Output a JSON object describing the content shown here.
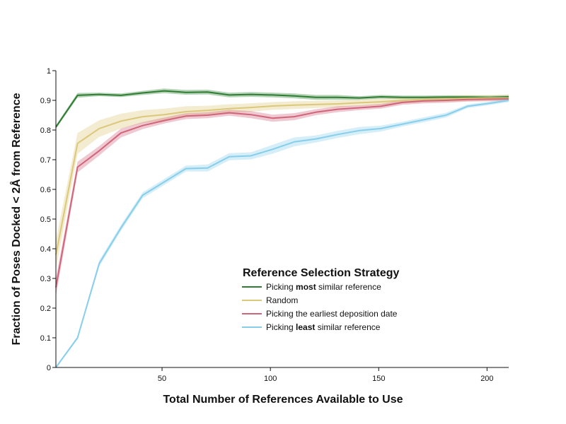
{
  "chart_data": {
    "type": "line",
    "title": "",
    "xlabel": "Total Number of References Available to Use",
    "ylabel": "Fraction of Poses Docked < 2Å from Reference",
    "xlim": [
      1,
      210
    ],
    "ylim": [
      0,
      1
    ],
    "x_ticks": [
      50,
      100,
      150,
      200
    ],
    "y_ticks": [
      0,
      0.1,
      0.2,
      0.3,
      0.4,
      0.5,
      0.6,
      0.7,
      0.8,
      0.9,
      1
    ],
    "y_tick_labels": [
      "0",
      "0.1",
      "0.2",
      "0.3",
      "0.4",
      "0.5",
      "0.6",
      "0.7",
      "0.8",
      "0.9",
      "1"
    ],
    "grid": false,
    "x": [
      1,
      11,
      21,
      31,
      41,
      51,
      61,
      71,
      81,
      91,
      101,
      111,
      121,
      131,
      141,
      151,
      161,
      171,
      181,
      191,
      201,
      210
    ],
    "legend": {
      "title": "Reference Selection Strategy",
      "placement": "lower-center",
      "items": [
        {
          "pre": "Picking ",
          "bold": "most",
          "post": " similar reference"
        },
        {
          "pre": "Random",
          "bold": "",
          "post": ""
        },
        {
          "pre": "Picking the earliest deposition date",
          "bold": "",
          "post": ""
        },
        {
          "pre": "Picking ",
          "bold": "least",
          "post": " similar reference"
        }
      ]
    },
    "series": [
      {
        "color": "#2e7d32",
        "band_color": "#2e7d32",
        "values": [
          0.81,
          0.917,
          0.92,
          0.917,
          0.925,
          0.932,
          0.927,
          0.928,
          0.918,
          0.92,
          0.918,
          0.915,
          0.91,
          0.91,
          0.908,
          0.912,
          0.91,
          0.91,
          0.911,
          0.911,
          0.91,
          0.912
        ],
        "band": [
          0.006,
          0.008,
          0.006,
          0.006,
          0.007,
          0.008,
          0.008,
          0.008,
          0.008,
          0.008,
          0.008,
          0.008,
          0.008,
          0.008,
          0.006,
          0.006,
          0.006,
          0.006,
          0.006,
          0.006,
          0.006,
          0.006
        ]
      },
      {
        "color": "#dcc87a",
        "band_color": "#dcc87a",
        "values": [
          0.38,
          0.755,
          0.805,
          0.83,
          0.845,
          0.852,
          0.862,
          0.866,
          0.872,
          0.876,
          0.881,
          0.884,
          0.886,
          0.888,
          0.892,
          0.895,
          0.9,
          0.903,
          0.905,
          0.907,
          0.908,
          0.908
        ],
        "band": [
          0.05,
          0.035,
          0.028,
          0.025,
          0.022,
          0.02,
          0.018,
          0.016,
          0.015,
          0.014,
          0.013,
          0.013,
          0.012,
          0.012,
          0.011,
          0.011,
          0.01,
          0.01,
          0.01,
          0.01,
          0.01,
          0.01
        ]
      },
      {
        "color": "#d0647a",
        "band_color": "#d0647a",
        "values": [
          0.27,
          0.675,
          0.73,
          0.79,
          0.815,
          0.832,
          0.847,
          0.85,
          0.858,
          0.852,
          0.84,
          0.845,
          0.86,
          0.87,
          0.875,
          0.88,
          0.893,
          0.898,
          0.9,
          0.903,
          0.904,
          0.905
        ],
        "band": [
          0.03,
          0.018,
          0.016,
          0.015,
          0.012,
          0.01,
          0.01,
          0.01,
          0.01,
          0.012,
          0.012,
          0.012,
          0.01,
          0.01,
          0.008,
          0.008,
          0.008,
          0.008,
          0.008,
          0.007,
          0.007,
          0.007
        ]
      },
      {
        "color": "#87ceeb",
        "band_color": "#87ceeb",
        "values": [
          0.0,
          0.1,
          0.35,
          0.47,
          0.58,
          0.625,
          0.67,
          0.672,
          0.71,
          0.713,
          0.735,
          0.76,
          0.77,
          0.785,
          0.798,
          0.805,
          0.82,
          0.835,
          0.85,
          0.88,
          0.89,
          0.9
        ],
        "band": [
          0.004,
          0.005,
          0.01,
          0.01,
          0.01,
          0.01,
          0.01,
          0.012,
          0.012,
          0.012,
          0.015,
          0.015,
          0.012,
          0.012,
          0.012,
          0.01,
          0.008,
          0.008,
          0.008,
          0.006,
          0.006,
          0.006
        ]
      }
    ]
  }
}
